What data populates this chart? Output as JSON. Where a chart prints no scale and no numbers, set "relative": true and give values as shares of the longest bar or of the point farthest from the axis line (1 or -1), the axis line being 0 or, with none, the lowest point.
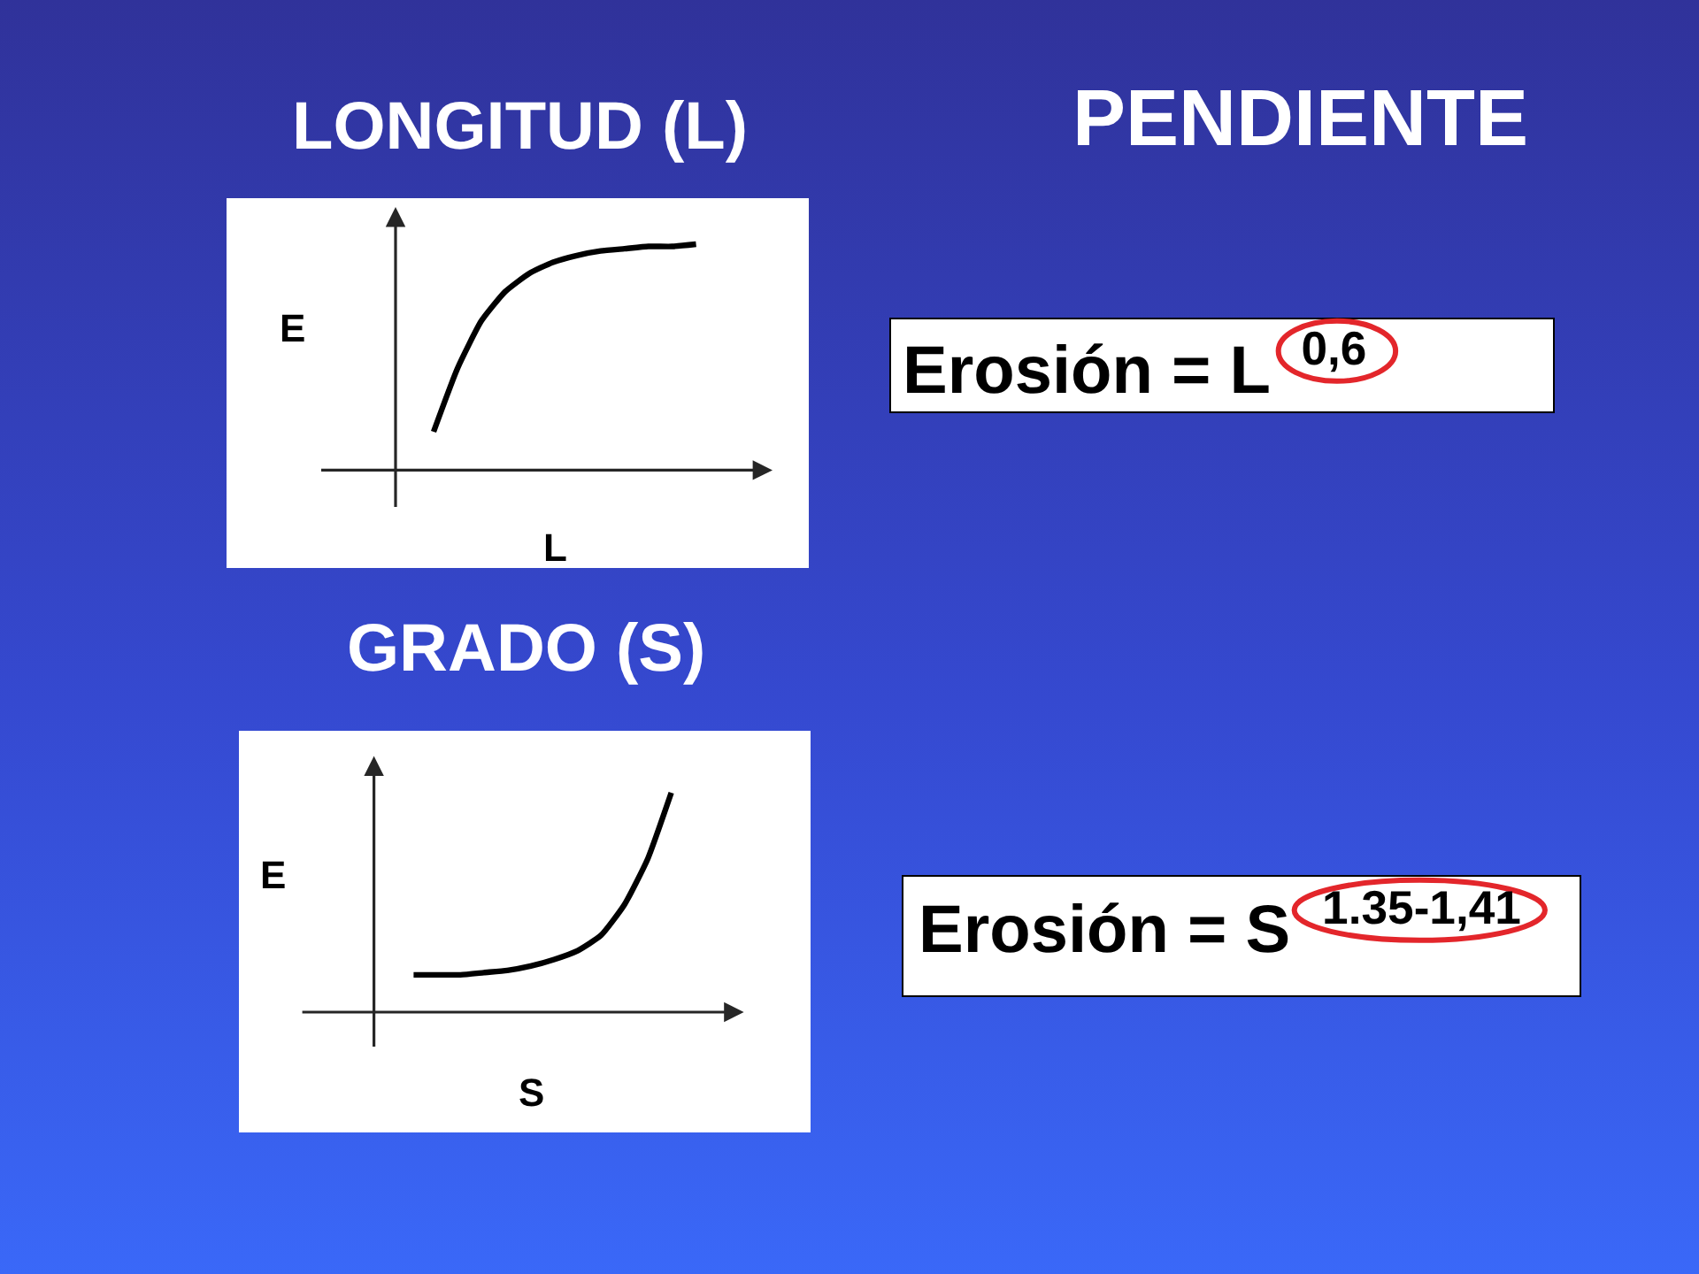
{
  "chart_data": [
    {
      "type": "line",
      "title": "LONGITUD (L)",
      "xlabel": "L",
      "ylabel": "E",
      "relative": true,
      "categories": [
        null,
        null,
        null,
        null,
        null,
        null,
        null,
        null,
        null,
        null,
        null,
        null
      ],
      "series": [
        {
          "color": "#000000",
          "values": [
            0.17,
            0.45,
            0.66,
            0.79,
            0.87,
            0.92,
            0.95,
            0.97,
            0.98,
            0.99,
            0.99,
            1
          ]
        }
      ]
    },
    {
      "type": "other",
      "title": "PENDIENTE",
      "annotations": [
        "Erosión = L$^{0,6}$"
      ]
    },
    {
      "type": "line",
      "title": "GRADO (S)",
      "xlabel": "S",
      "ylabel": "E",
      "relative": true,
      "categories": [
        null,
        null,
        null,
        null,
        null,
        null,
        null,
        null,
        null,
        null,
        null,
        null
      ],
      "series": [
        {
          "color": "#000000",
          "values": [
            0.17,
            0.17,
            0.17,
            0.18,
            0.19,
            0.21,
            0.24,
            0.28,
            0.35,
            0.49,
            0.7,
            1
          ]
        }
      ]
    },
    {
      "type": "other",
      "annotations": [
        "Erosión = S$^{1.35-1,41}$"
      ]
    }
  ]
}
